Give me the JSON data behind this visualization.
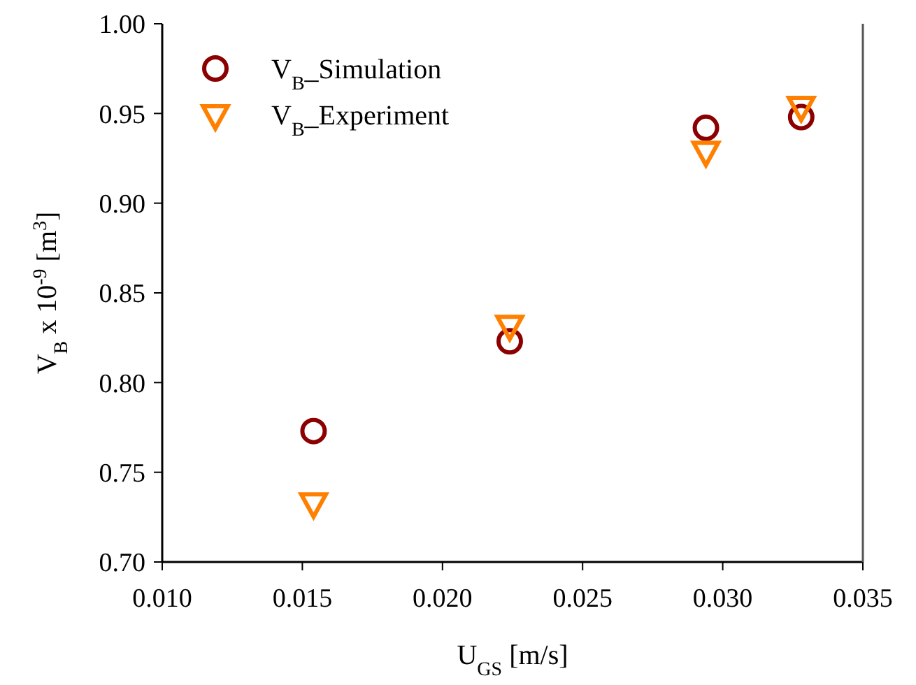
{
  "chart_data": {
    "type": "scatter",
    "xlabel": "U$_{GS}$ [m/s]",
    "ylabel": "V$_{B}$ x 10$^{-9}$ [m$^{3}$]",
    "xlim": [
      0.01,
      0.035
    ],
    "xticks": [
      {
        "value": 0.01,
        "label": "0.010"
      },
      {
        "value": 0.015,
        "label": "0.015"
      },
      {
        "value": 0.02,
        "label": "0.020"
      },
      {
        "value": 0.025,
        "label": "0.025"
      },
      {
        "value": 0.03,
        "label": "0.030"
      },
      {
        "value": 0.035,
        "label": "0.035"
      }
    ],
    "ylim": [
      0.7,
      1.0
    ],
    "yticks": [
      {
        "value": 0.7,
        "label": "0.70"
      },
      {
        "value": 0.75,
        "label": "0.75"
      },
      {
        "value": 0.8,
        "label": "0.80"
      },
      {
        "value": 0.85,
        "label": "0.85"
      },
      {
        "value": 0.9,
        "label": "0.90"
      },
      {
        "value": 0.95,
        "label": "0.95"
      },
      {
        "value": 1.0,
        "label": "1.00"
      }
    ],
    "grid": false,
    "legend": "top left",
    "series": [
      {
        "name": "V$_{B}$_Simulation",
        "color": "#8b0000",
        "marker": "circle",
        "x": [
          0.0154,
          0.0224,
          0.0294,
          0.0328
        ],
        "values": [
          0.773,
          0.823,
          0.942,
          0.948
        ]
      },
      {
        "name": "V$_{B}$_Experiment",
        "color": "#ff8000",
        "marker": "triangle",
        "x": [
          0.0154,
          0.0224,
          0.0294,
          0.0328
        ],
        "values": [
          0.733,
          0.832,
          0.929,
          0.954
        ]
      }
    ]
  }
}
